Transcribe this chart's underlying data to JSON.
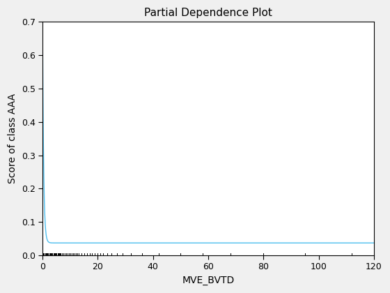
{
  "title": "Partial Dependence Plot",
  "xlabel": "MVE_BVTD",
  "ylabel": "Score of class AAA",
  "line_color": "#4DBEEE",
  "line_width": 1.0,
  "xlim": [
    0,
    120
  ],
  "ylim": [
    0,
    0.7
  ],
  "xticks": [
    0,
    20,
    40,
    60,
    80,
    100,
    120
  ],
  "yticks": [
    0.0,
    0.1,
    0.2,
    0.3,
    0.4,
    0.5,
    0.6,
    0.7
  ],
  "rug_marks": [
    0.3,
    0.6,
    0.9,
    1.2,
    1.5,
    1.8,
    2.1,
    2.4,
    2.7,
    3.0,
    3.3,
    3.6,
    3.9,
    4.2,
    4.5,
    4.8,
    5.1,
    5.4,
    5.7,
    6.0,
    6.3,
    6.6,
    7.0,
    7.5,
    8.0,
    8.5,
    9.0,
    9.5,
    10.0,
    10.5,
    11.0,
    11.5,
    12.0,
    12.5,
    13.0,
    14.0,
    15.0,
    16.0,
    17.0,
    18.0,
    19.0,
    20.0,
    21.0,
    22.0,
    23.5,
    25.0,
    27.0,
    29.0,
    32.0,
    36.0,
    42.0,
    50.0,
    58.0,
    68.0,
    80.0,
    95.0,
    112.0
  ],
  "figure_facecolor": "#f0f0f0",
  "axes_facecolor": "#ffffff",
  "curve_start_y": 0.685,
  "curve_end_y": 0.037,
  "decay_rate": 2.5,
  "title_fontsize": 11,
  "label_fontsize": 10,
  "tick_fontsize": 9
}
